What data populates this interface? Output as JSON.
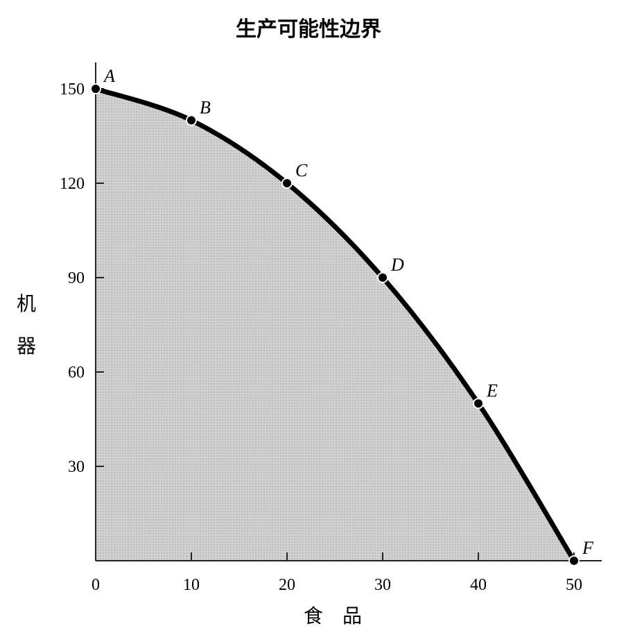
{
  "chart_data": {
    "type": "area",
    "title": "生产可能性边界",
    "xlabel": "食　品",
    "ylabel": [
      "机",
      "器"
    ],
    "xlim": [
      0,
      50
    ],
    "ylim": [
      0,
      150
    ],
    "x_ticks": [
      0,
      10,
      20,
      30,
      40,
      50
    ],
    "y_ticks": [
      30,
      60,
      90,
      120,
      150
    ],
    "grid": false,
    "fill": "stippled gray",
    "series": [
      {
        "points": [
          {
            "label": "A",
            "x": 0,
            "y": 150
          },
          {
            "label": "B",
            "x": 10,
            "y": 140
          },
          {
            "label": "C",
            "x": 20,
            "y": 120
          },
          {
            "label": "D",
            "x": 30,
            "y": 90
          },
          {
            "label": "E",
            "x": 40,
            "y": 50
          },
          {
            "label": "F",
            "x": 50,
            "y": 0
          }
        ]
      }
    ]
  },
  "colors": {
    "curve": "#000000",
    "fill": "#cfcfcf",
    "fill_dot": "#8a8a8a",
    "axis": "#222222"
  }
}
